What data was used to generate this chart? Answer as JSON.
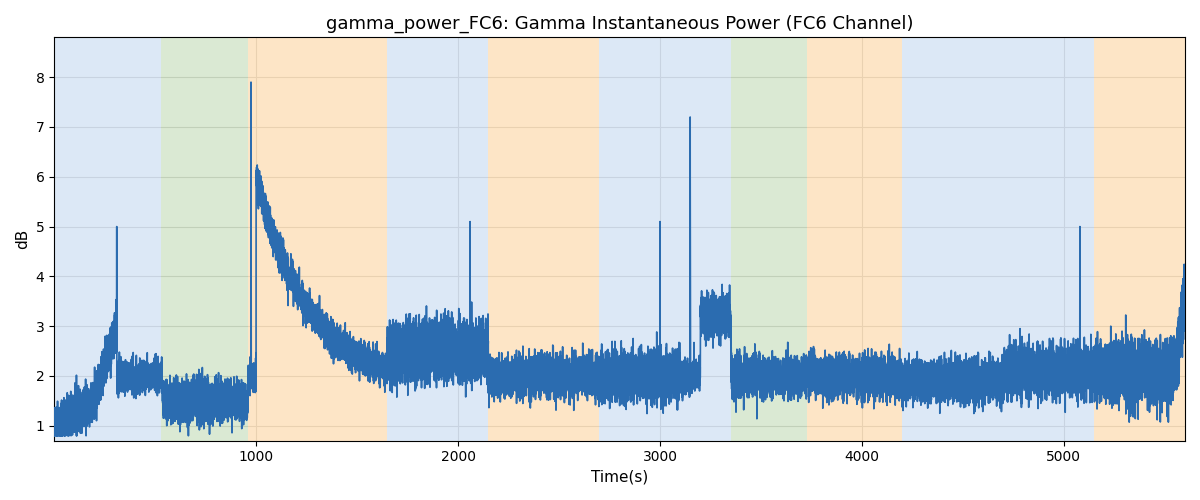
{
  "title": "gamma_power_FC6: Gamma Instantaneous Power (FC6 Channel)",
  "xlabel": "Time(s)",
  "ylabel": "dB",
  "xlim": [
    0,
    5600
  ],
  "ylim": [
    0.7,
    8.8
  ],
  "yticks": [
    1,
    2,
    3,
    4,
    5,
    6,
    7,
    8
  ],
  "xticks": [
    1000,
    2000,
    3000,
    4000,
    5000
  ],
  "line_color": "#2b6cb0",
  "line_width": 1.2,
  "background_color": "#ffffff",
  "grid_color": "#cccccc",
  "bands": [
    {
      "xmin": 0,
      "xmax": 170,
      "color": "#c6d9f0",
      "alpha": 0.6
    },
    {
      "xmin": 170,
      "xmax": 530,
      "color": "#c6d9f0",
      "alpha": 0.6
    },
    {
      "xmin": 530,
      "xmax": 960,
      "color": "#b7d4a8",
      "alpha": 0.5
    },
    {
      "xmin": 960,
      "xmax": 1650,
      "color": "#fdd5a0",
      "alpha": 0.6
    },
    {
      "xmin": 1650,
      "xmax": 2150,
      "color": "#c6d9f0",
      "alpha": 0.6
    },
    {
      "xmin": 2150,
      "xmax": 2700,
      "color": "#fdd5a0",
      "alpha": 0.6
    },
    {
      "xmin": 2700,
      "xmax": 3100,
      "color": "#c6d9f0",
      "alpha": 0.6
    },
    {
      "xmin": 3100,
      "xmax": 3350,
      "color": "#c6d9f0",
      "alpha": 0.6
    },
    {
      "xmin": 3350,
      "xmax": 3730,
      "color": "#b7d4a8",
      "alpha": 0.5
    },
    {
      "xmin": 3730,
      "xmax": 4200,
      "color": "#fdd5a0",
      "alpha": 0.6
    },
    {
      "xmin": 4200,
      "xmax": 4700,
      "color": "#c6d9f0",
      "alpha": 0.6
    },
    {
      "xmin": 4700,
      "xmax": 5150,
      "color": "#c6d9f0",
      "alpha": 0.6
    },
    {
      "xmin": 5150,
      "xmax": 5600,
      "color": "#fdd5a0",
      "alpha": 0.6
    }
  ],
  "title_fontsize": 13,
  "label_fontsize": 11
}
